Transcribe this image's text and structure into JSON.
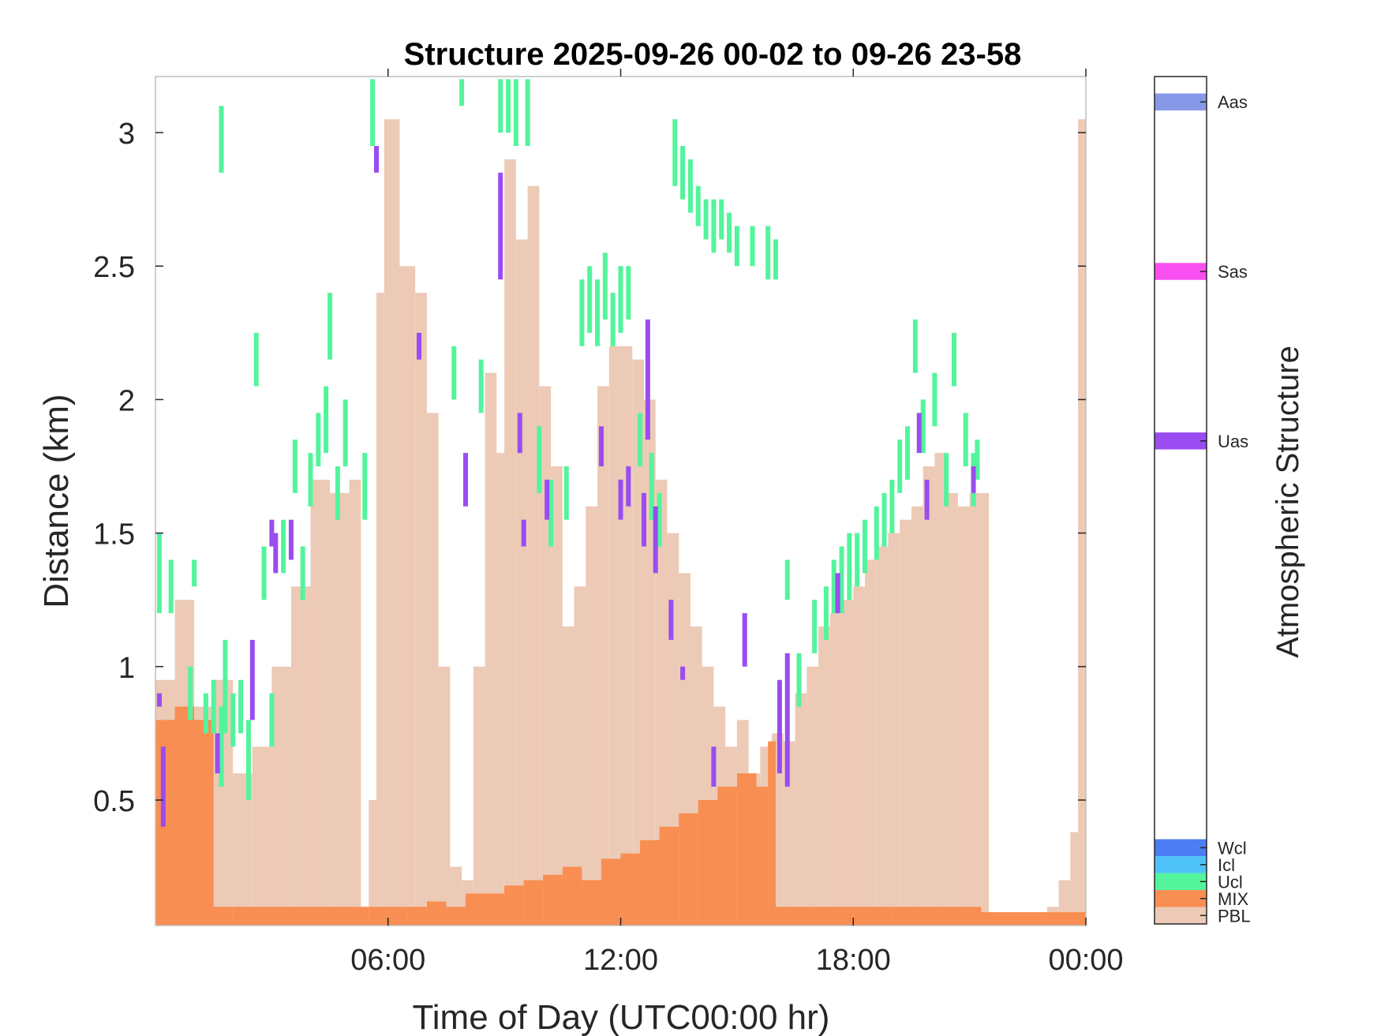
{
  "chart_data": {
    "type": "heatmap",
    "title": "Structure 2025-09-26 00-02 to 09-26 23-58",
    "xlabel": "Time of Day (UTC00:00 hr)",
    "ylabel": "Distance (km)",
    "xlim": [
      0,
      24
    ],
    "ylim": [
      0.03,
      3.21
    ],
    "x_ticks": [
      6,
      12,
      18,
      24
    ],
    "x_tick_labels": [
      "06:00",
      "12:00",
      "18:00",
      "00:00"
    ],
    "y_ticks": [
      0.5,
      1,
      1.5,
      2,
      2.5,
      3
    ],
    "y_tick_labels": [
      "0.5",
      "1",
      "1.5",
      "2",
      "2.5",
      "3"
    ],
    "colorbar": {
      "label": "Atmospheric Structure",
      "classes": [
        {
          "name": "PBL",
          "color": "#ECCAB6",
          "level": 0
        },
        {
          "name": "MIX",
          "color": "#F98E52",
          "level": 1
        },
        {
          "name": "Ucl",
          "color": "#53F49B",
          "level": 2
        },
        {
          "name": "Icl",
          "color": "#4FC3F7",
          "level": 3
        },
        {
          "name": "Wcl",
          "color": "#4D7DF2",
          "level": 4
        },
        {
          "name": "Uas",
          "color": "#9A4CF0",
          "level": 28
        },
        {
          "name": "Sas",
          "color": "#F94FF0",
          "level": 38
        },
        {
          "name": "Aas",
          "color": "#8898E8",
          "level": 48
        }
      ]
    },
    "pbl_top_km": [
      [
        0.0,
        0.95
      ],
      [
        0.5,
        1.25
      ],
      [
        1.0,
        0.85
      ],
      [
        1.5,
        0.95
      ],
      [
        2.0,
        0.6
      ],
      [
        2.5,
        0.7
      ],
      [
        3.0,
        1.0
      ],
      [
        3.5,
        1.3
      ],
      [
        4.0,
        1.7
      ],
      [
        4.5,
        1.65
      ],
      [
        5.0,
        1.7
      ],
      [
        5.3,
        0.1
      ],
      [
        5.5,
        0.5
      ],
      [
        5.7,
        2.4
      ],
      [
        5.9,
        3.05
      ],
      [
        6.3,
        2.5
      ],
      [
        6.7,
        2.4
      ],
      [
        7.0,
        1.95
      ],
      [
        7.3,
        1.0
      ],
      [
        7.6,
        0.25
      ],
      [
        7.9,
        0.2
      ],
      [
        8.2,
        1.0
      ],
      [
        8.5,
        2.1
      ],
      [
        8.8,
        1.8
      ],
      [
        9.0,
        2.9
      ],
      [
        9.3,
        2.6
      ],
      [
        9.6,
        2.8
      ],
      [
        9.9,
        2.05
      ],
      [
        10.2,
        1.75
      ],
      [
        10.5,
        1.15
      ],
      [
        10.8,
        1.3
      ],
      [
        11.1,
        1.6
      ],
      [
        11.4,
        2.05
      ],
      [
        11.7,
        2.2
      ],
      [
        12.0,
        2.2
      ],
      [
        12.3,
        2.15
      ],
      [
        12.6,
        2.0
      ],
      [
        12.9,
        1.7
      ],
      [
        13.2,
        1.5
      ],
      [
        13.5,
        1.35
      ],
      [
        13.8,
        1.15
      ],
      [
        14.1,
        1.0
      ],
      [
        14.4,
        0.85
      ],
      [
        14.7,
        0.7
      ],
      [
        15.0,
        0.8
      ],
      [
        15.3,
        0.6
      ],
      [
        15.6,
        0.7
      ],
      [
        15.9,
        0.75
      ],
      [
        16.2,
        0.72
      ],
      [
        16.5,
        0.9
      ],
      [
        16.8,
        1.0
      ],
      [
        17.1,
        1.15
      ],
      [
        17.4,
        1.2
      ],
      [
        17.7,
        1.25
      ],
      [
        18.0,
        1.3
      ],
      [
        18.3,
        1.4
      ],
      [
        18.6,
        1.45
      ],
      [
        18.9,
        1.5
      ],
      [
        19.2,
        1.55
      ],
      [
        19.5,
        1.6
      ],
      [
        19.8,
        1.75
      ],
      [
        20.1,
        1.8
      ],
      [
        20.4,
        1.65
      ],
      [
        20.7,
        1.6
      ],
      [
        21.0,
        1.65
      ],
      [
        21.3,
        1.65
      ],
      [
        21.5,
        0.08
      ],
      [
        22.0,
        0.08
      ],
      [
        22.5,
        0.08
      ],
      [
        23.0,
        0.1
      ],
      [
        23.3,
        0.2
      ],
      [
        23.6,
        0.38
      ],
      [
        23.8,
        3.05
      ],
      [
        24.0,
        0.25
      ]
    ],
    "mix_top_km": [
      [
        0.0,
        0.8
      ],
      [
        0.5,
        0.85
      ],
      [
        1.0,
        0.8
      ],
      [
        1.5,
        0.1
      ],
      [
        2.0,
        0.1
      ],
      [
        3.0,
        0.1
      ],
      [
        4.0,
        0.1
      ],
      [
        5.0,
        0.1
      ],
      [
        5.5,
        0.1
      ],
      [
        6.0,
        0.1
      ],
      [
        6.5,
        0.1
      ],
      [
        7.0,
        0.12
      ],
      [
        7.5,
        0.1
      ],
      [
        8.0,
        0.15
      ],
      [
        8.5,
        0.15
      ],
      [
        9.0,
        0.18
      ],
      [
        9.5,
        0.2
      ],
      [
        10.0,
        0.22
      ],
      [
        10.5,
        0.25
      ],
      [
        11.0,
        0.2
      ],
      [
        11.5,
        0.28
      ],
      [
        12.0,
        0.3
      ],
      [
        12.5,
        0.35
      ],
      [
        13.0,
        0.4
      ],
      [
        13.5,
        0.45
      ],
      [
        14.0,
        0.5
      ],
      [
        14.5,
        0.55
      ],
      [
        15.0,
        0.6
      ],
      [
        15.5,
        0.55
      ],
      [
        15.8,
        0.72
      ],
      [
        16.0,
        0.1
      ],
      [
        17.0,
        0.1
      ],
      [
        18.0,
        0.1
      ],
      [
        19.0,
        0.1
      ],
      [
        19.5,
        0.1
      ],
      [
        20.0,
        0.1
      ],
      [
        20.5,
        0.1
      ],
      [
        21.0,
        0.1
      ],
      [
        21.3,
        0.08
      ]
    ],
    "ucl_segments_km": [
      [
        0.1,
        1.2,
        1.5
      ],
      [
        0.4,
        1.2,
        1.4
      ],
      [
        0.9,
        0.8,
        1.0
      ],
      [
        1.0,
        1.3,
        1.4
      ],
      [
        1.3,
        0.75,
        0.9
      ],
      [
        1.5,
        0.75,
        0.95
      ],
      [
        1.7,
        0.55,
        0.85
      ],
      [
        1.7,
        2.85,
        3.1
      ],
      [
        1.8,
        0.75,
        1.1
      ],
      [
        2.0,
        0.7,
        0.9
      ],
      [
        2.2,
        0.75,
        0.95
      ],
      [
        2.4,
        0.5,
        0.8
      ],
      [
        2.6,
        2.05,
        2.25
      ],
      [
        2.8,
        1.25,
        1.45
      ],
      [
        3.0,
        0.7,
        0.9
      ],
      [
        3.3,
        1.35,
        1.55
      ],
      [
        3.6,
        1.65,
        1.85
      ],
      [
        3.8,
        1.25,
        1.45
      ],
      [
        4.0,
        1.6,
        1.8
      ],
      [
        4.2,
        1.75,
        1.95
      ],
      [
        4.4,
        1.8,
        2.05
      ],
      [
        4.5,
        2.15,
        2.4
      ],
      [
        4.7,
        1.55,
        1.75
      ],
      [
        4.9,
        1.75,
        2.0
      ],
      [
        5.4,
        1.55,
        1.8
      ],
      [
        5.6,
        2.95,
        3.2
      ],
      [
        7.7,
        2.0,
        2.2
      ],
      [
        7.9,
        3.1,
        3.2
      ],
      [
        8.4,
        1.95,
        2.15
      ],
      [
        8.9,
        3.0,
        3.2
      ],
      [
        9.1,
        3.0,
        3.2
      ],
      [
        9.3,
        2.95,
        3.2
      ],
      [
        9.6,
        2.95,
        3.2
      ],
      [
        9.9,
        1.65,
        1.9
      ],
      [
        10.2,
        1.45,
        1.7
      ],
      [
        10.6,
        1.55,
        1.75
      ],
      [
        11.0,
        2.2,
        2.45
      ],
      [
        11.2,
        2.25,
        2.5
      ],
      [
        11.4,
        2.2,
        2.45
      ],
      [
        11.6,
        2.3,
        2.55
      ],
      [
        11.8,
        2.2,
        2.4
      ],
      [
        12.0,
        2.25,
        2.5
      ],
      [
        12.2,
        2.3,
        2.5
      ],
      [
        12.5,
        1.75,
        1.95
      ],
      [
        12.8,
        1.55,
        1.8
      ],
      [
        13.0,
        1.45,
        1.65
      ],
      [
        13.4,
        2.8,
        3.05
      ],
      [
        13.6,
        2.75,
        2.95
      ],
      [
        13.8,
        2.7,
        2.9
      ],
      [
        14.0,
        2.65,
        2.8
      ],
      [
        14.2,
        2.6,
        2.75
      ],
      [
        14.4,
        2.55,
        2.75
      ],
      [
        14.6,
        2.6,
        2.75
      ],
      [
        14.8,
        2.55,
        2.7
      ],
      [
        15.0,
        2.5,
        2.65
      ],
      [
        15.4,
        2.5,
        2.65
      ],
      [
        15.8,
        2.45,
        2.65
      ],
      [
        16.0,
        2.45,
        2.6
      ],
      [
        16.3,
        1.25,
        1.4
      ],
      [
        16.6,
        0.85,
        1.05
      ],
      [
        17.0,
        1.05,
        1.25
      ],
      [
        17.3,
        1.1,
        1.3
      ],
      [
        17.5,
        1.2,
        1.4
      ],
      [
        17.7,
        1.2,
        1.45
      ],
      [
        17.9,
        1.25,
        1.5
      ],
      [
        18.1,
        1.3,
        1.5
      ],
      [
        18.3,
        1.35,
        1.55
      ],
      [
        18.6,
        1.4,
        1.6
      ],
      [
        18.8,
        1.45,
        1.65
      ],
      [
        19.0,
        1.5,
        1.7
      ],
      [
        19.2,
        1.65,
        1.85
      ],
      [
        19.4,
        1.7,
        1.9
      ],
      [
        19.6,
        2.1,
        2.3
      ],
      [
        19.8,
        1.8,
        2.0
      ],
      [
        20.1,
        1.9,
        2.1
      ],
      [
        20.4,
        1.6,
        1.8
      ],
      [
        20.6,
        2.05,
        2.25
      ],
      [
        20.9,
        1.75,
        1.95
      ],
      [
        21.1,
        1.6,
        1.8
      ],
      [
        21.2,
        1.7,
        1.85
      ]
    ],
    "uas_segments_km": [
      [
        0.1,
        0.85,
        0.9
      ],
      [
        0.2,
        0.4,
        0.7
      ],
      [
        1.6,
        0.6,
        0.75
      ],
      [
        2.5,
        0.8,
        1.1
      ],
      [
        3.0,
        1.45,
        1.55
      ],
      [
        3.1,
        1.35,
        1.5
      ],
      [
        3.5,
        1.4,
        1.55
      ],
      [
        5.7,
        2.85,
        2.95
      ],
      [
        6.8,
        2.15,
        2.25
      ],
      [
        8.0,
        1.6,
        1.8
      ],
      [
        8.9,
        2.45,
        2.85
      ],
      [
        9.4,
        1.8,
        1.95
      ],
      [
        9.5,
        1.45,
        1.55
      ],
      [
        10.1,
        1.55,
        1.7
      ],
      [
        11.5,
        1.75,
        1.9
      ],
      [
        12.0,
        1.55,
        1.7
      ],
      [
        12.2,
        1.6,
        1.75
      ],
      [
        12.6,
        1.45,
        1.65
      ],
      [
        12.7,
        1.85,
        2.3
      ],
      [
        12.9,
        1.35,
        1.6
      ],
      [
        13.3,
        1.1,
        1.25
      ],
      [
        13.6,
        0.95,
        1.0
      ],
      [
        14.4,
        0.55,
        0.7
      ],
      [
        15.2,
        1.0,
        1.2
      ],
      [
        16.1,
        0.6,
        0.95
      ],
      [
        16.3,
        0.55,
        1.05
      ],
      [
        17.6,
        1.2,
        1.35
      ],
      [
        19.7,
        1.8,
        1.95
      ],
      [
        19.9,
        1.55,
        1.7
      ],
      [
        21.1,
        1.65,
        1.75
      ]
    ]
  }
}
